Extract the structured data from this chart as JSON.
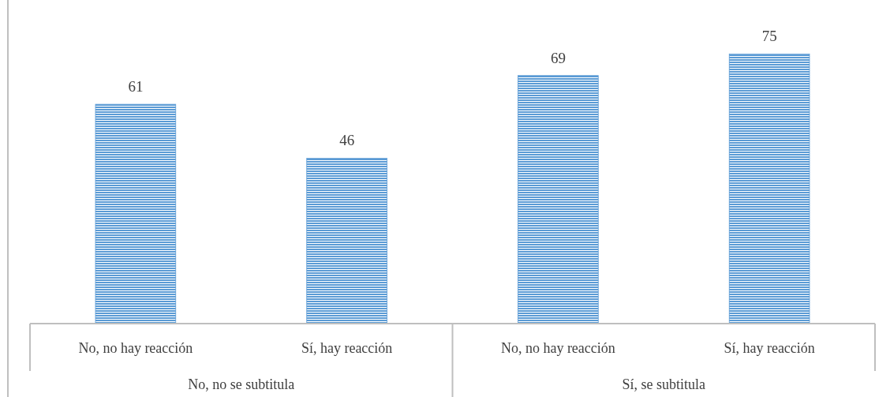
{
  "chart_data": {
    "type": "bar",
    "categories": [
      "No, no hay reacción",
      "Sí, hay reacción",
      "No, no hay reacción",
      "Sí, hay reacción"
    ],
    "values": [
      61,
      46,
      69,
      75
    ],
    "color": "#5b9bd5",
    "data_labels": true,
    "annotations": [
      "No, no se subtitula",
      "Sí, se subtitula"
    ]
  }
}
